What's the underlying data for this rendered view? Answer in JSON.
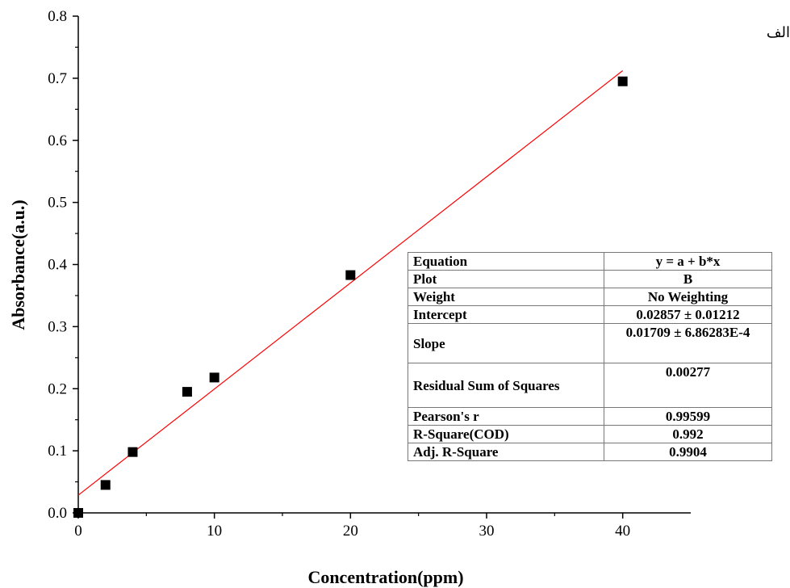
{
  "corner_text": "الف",
  "chart_data": {
    "type": "scatter",
    "title": "",
    "xlabel": "Concentration(ppm)",
    "ylabel": "Absorbance(a.u.)",
    "xlim": [
      0,
      45
    ],
    "ylim": [
      0,
      0.8
    ],
    "x_ticks": [
      0,
      10,
      20,
      30,
      40
    ],
    "y_ticks": [
      0.0,
      0.1,
      0.2,
      0.3,
      0.4,
      0.5,
      0.6,
      0.7,
      0.8
    ],
    "x_tick_labels": [
      "0",
      "10",
      "20",
      "30",
      "40"
    ],
    "y_tick_labels": [
      "0.0",
      "0.1",
      "0.2",
      "0.3",
      "0.4",
      "0.5",
      "0.6",
      "0.7",
      "0.8"
    ],
    "points": [
      {
        "x": 0,
        "y": 0.0
      },
      {
        "x": 2,
        "y": 0.045
      },
      {
        "x": 4,
        "y": 0.098
      },
      {
        "x": 8,
        "y": 0.195
      },
      {
        "x": 10,
        "y": 0.218
      },
      {
        "x": 20,
        "y": 0.383
      },
      {
        "x": 40,
        "y": 0.695
      }
    ],
    "fit_line": {
      "intercept": 0.02857,
      "slope": 0.01709,
      "x_range": [
        0,
        40
      ],
      "color": "#ff0000"
    },
    "marker_color": "#000000",
    "grid": false
  },
  "stats_table": [
    {
      "label": "Equation",
      "value": "y = a + b*x"
    },
    {
      "label": "Plot",
      "value": "B"
    },
    {
      "label": "Weight",
      "value": "No Weighting"
    },
    {
      "label": "Intercept",
      "value": "0.02857 ± 0.01212"
    },
    {
      "label": "Slope",
      "value": "0.01709 ± 6.86283E-4"
    },
    {
      "label": "Residual Sum of Squares",
      "value": "0.00277"
    },
    {
      "label": "Pearson's r",
      "value": "0.99599"
    },
    {
      "label": "R-Square(COD)",
      "value": "0.992"
    },
    {
      "label": "Adj. R-Square",
      "value": "0.9904"
    }
  ]
}
